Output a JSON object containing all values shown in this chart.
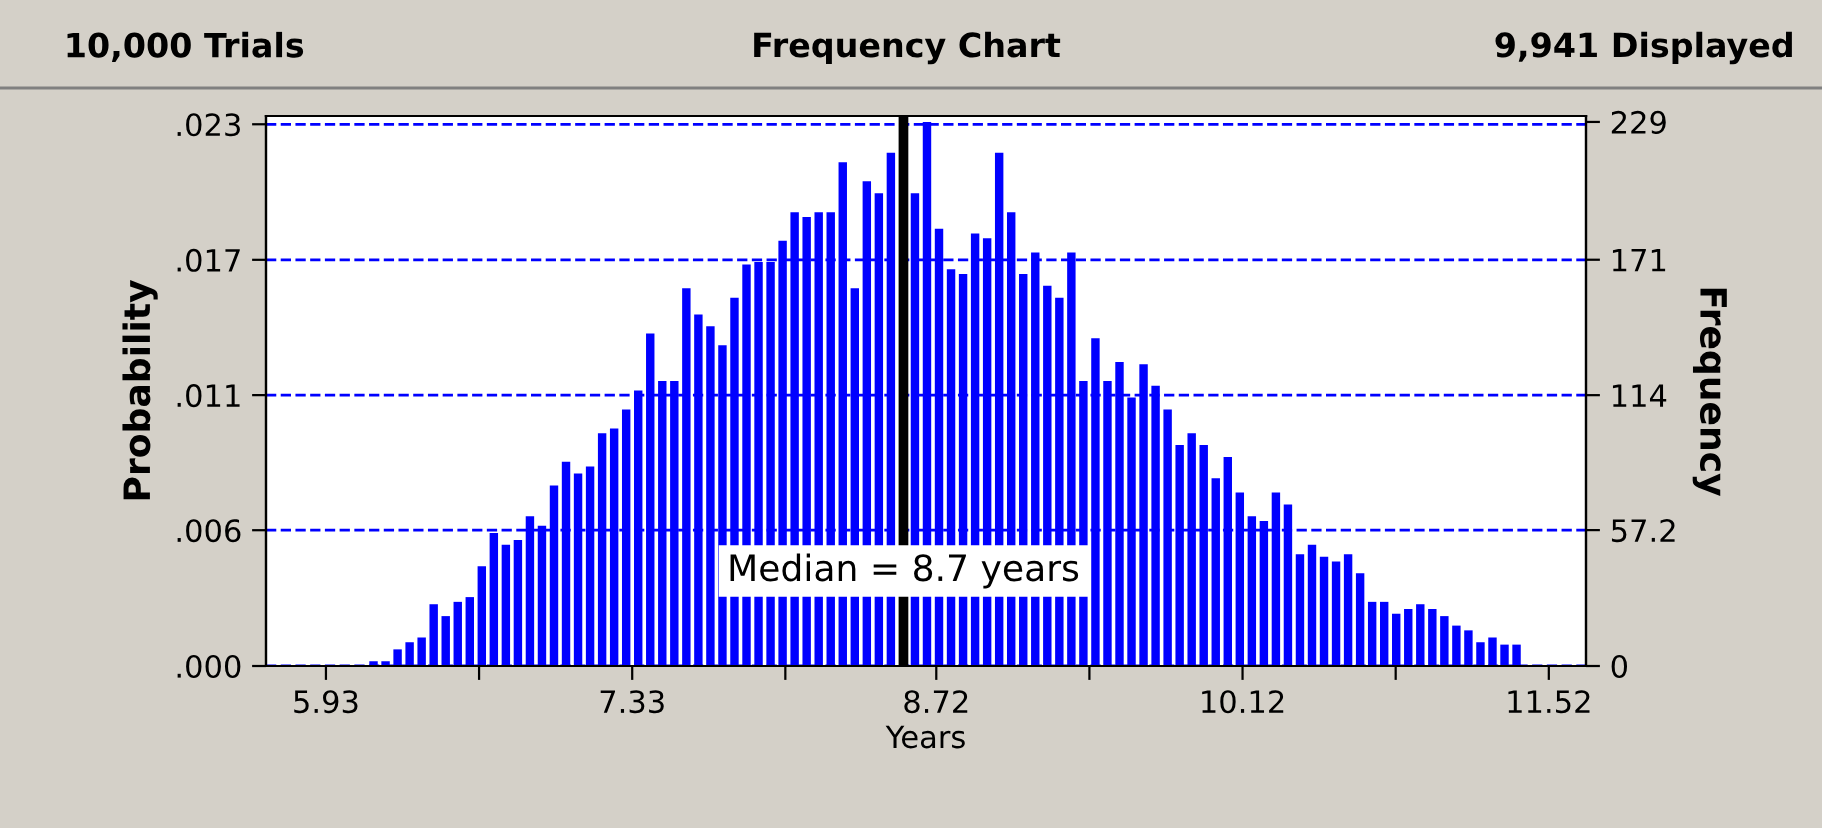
{
  "chart_data": {
    "type": "histogram",
    "title": "Frequency Chart",
    "annotations": [
      "10,000 Trials",
      "9,941 Displayed",
      "Median = 8.7 years"
    ],
    "xlabel": "Years",
    "ylabel": "Probability",
    "y2label": "Frequency",
    "bins": [
      6.12,
      6.175,
      6.23,
      6.285,
      6.34,
      6.395,
      6.45,
      6.505,
      6.56,
      6.615,
      6.67,
      6.725,
      6.78,
      6.835,
      6.89,
      6.945,
      7.0,
      7.055,
      7.11,
      7.165,
      7.22,
      7.275,
      7.33,
      7.385,
      7.44,
      7.495,
      7.55,
      7.605,
      7.66,
      7.715,
      7.77,
      7.825,
      7.88,
      7.935,
      7.99,
      8.045,
      8.1,
      8.155,
      8.21,
      8.265,
      8.32,
      8.375,
      8.43,
      8.485,
      8.54,
      8.595,
      8.65,
      8.705,
      8.76,
      8.815,
      8.87,
      8.925,
      8.98,
      9.035,
      9.09,
      9.145,
      9.2,
      9.255,
      9.31,
      9.365,
      9.42,
      9.475,
      9.53,
      9.585,
      9.64,
      9.695,
      9.75,
      9.805,
      9.86,
      9.915,
      9.97,
      10.025,
      10.08,
      10.135,
      10.19,
      10.245,
      10.3,
      10.355,
      10.41,
      10.465,
      10.52,
      10.575,
      10.63,
      10.685,
      10.74,
      10.795,
      10.85,
      10.905,
      10.96,
      11.015,
      11.07,
      11.125,
      11.18,
      11.235,
      11.29,
      11.345,
      11.4
    ],
    "series": [
      {
        "color": "#0000ff",
        "axis": "y2",
        "values": [
          2,
          2,
          7,
          10,
          12,
          26,
          21,
          27,
          29,
          42,
          56,
          51,
          53,
          63,
          59,
          76,
          86,
          81,
          84,
          98,
          100,
          108,
          116,
          140,
          120,
          120,
          159,
          148,
          143,
          135,
          155,
          169,
          170,
          170,
          179,
          191,
          189,
          191,
          191,
          212,
          159,
          204,
          199,
          216,
          null,
          199,
          229,
          184,
          167,
          165,
          182,
          180,
          216,
          191,
          165,
          174,
          160,
          155,
          174,
          120,
          138,
          120,
          128,
          113,
          127,
          118,
          108,
          93,
          98,
          93,
          79,
          88,
          73,
          63,
          61,
          73,
          68,
          47,
          51,
          46,
          44,
          47,
          39,
          27,
          27,
          22,
          24,
          26,
          24,
          21,
          17,
          15,
          10,
          12,
          9,
          9
        ]
      }
    ],
    "xlim": [
      5.656,
      11.69
    ],
    "xticks": [
      5.93,
      {
        "value": 6.63,
        "label": null
      },
      7.33,
      {
        "value": 8.03,
        "label": null
      },
      8.72,
      {
        "value": 9.42,
        "label": null
      },
      10.12,
      {
        "value": 10.82,
        "label": null
      },
      11.52
    ],
    "ylim": [
      0,
      0.02329
    ],
    "yticks": [
      {
        "value": 0,
        "label": ".000"
      },
      {
        "value": 0.00575,
        "label": ".006"
      },
      {
        "value": 0.01147,
        "label": ".011"
      },
      {
        "value": 0.0172,
        "label": ".017"
      },
      {
        "value": 0.02294,
        "label": ".023"
      }
    ],
    "y2lim": [
      0,
      231.5
    ],
    "y2ticks": [
      0,
      57.2,
      114,
      171,
      229
    ],
    "ref_lines": [
      {
        "axis": "x",
        "value": 8.57,
        "color": "#000000"
      }
    ],
    "grid": "y",
    "line_style": "dashed",
    "legend": false
  }
}
